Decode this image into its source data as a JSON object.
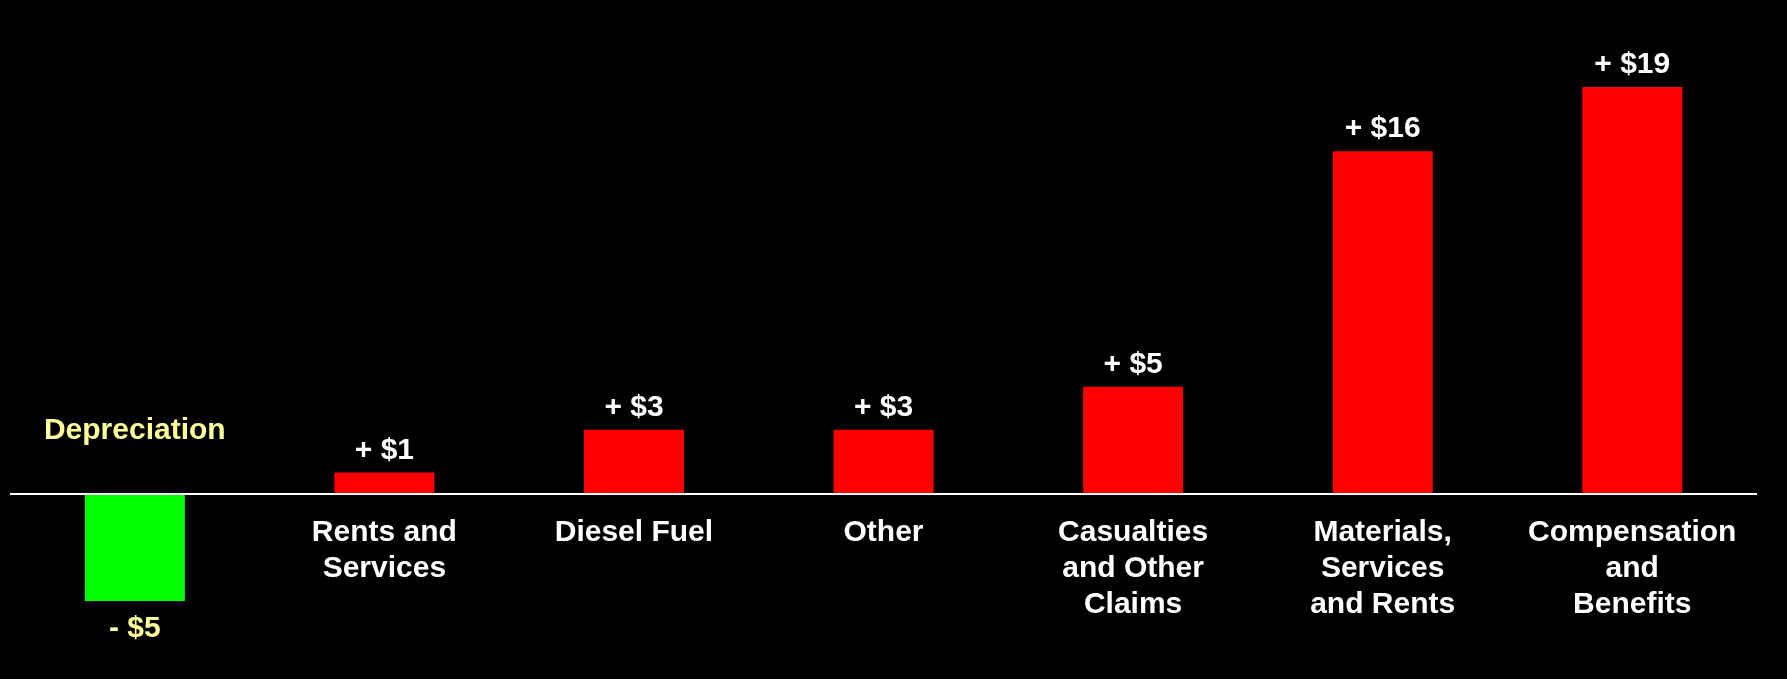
{
  "chart_data": {
    "type": "bar",
    "categories": [
      "Depreciation",
      "Rents and Services",
      "Diesel Fuel",
      "Other",
      "Casualties and Other Claims",
      "Materials, Services and Rents",
      "Compensation and Benefits"
    ],
    "values": [
      -5,
      1,
      3,
      3,
      5,
      16,
      19
    ],
    "colors": [
      "#00ff00",
      "#ff0000",
      "#ff0000",
      "#ff0000",
      "#ff0000",
      "#ff0000",
      "#ff0000"
    ],
    "value_labels": [
      "- $5",
      "+ $1",
      "+ $3",
      "+ $3",
      "+ $5",
      "+ $16",
      "+ $19"
    ]
  }
}
